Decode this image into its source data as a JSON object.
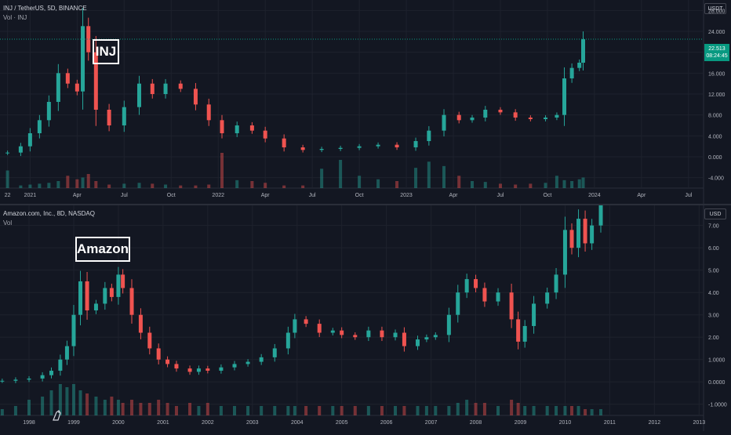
{
  "top": {
    "header": "INJ / TetherUS, 5D, BINANCE",
    "volume_label": "Vol · INJ",
    "currency": "USDT",
    "annotation": "INJ",
    "price_tag": {
      "price": "22.513",
      "countdown": "08:24:45"
    }
  },
  "bottom": {
    "header": "Amazon.com, Inc., 8D, NASDAQ",
    "volume_label": "Vol",
    "currency": "USD",
    "annotation": "Amazon"
  },
  "colors": {
    "up": "#26a69a",
    "down": "#ef5350",
    "background": "#131722",
    "grid": "#1e222d",
    "text": "#b2b5be"
  },
  "chart_data": [
    {
      "type": "candlestick",
      "title": "INJ / TetherUS, 5D, BINANCE",
      "y_ticks": [
        "28.000",
        "24.000",
        "20.000",
        "16.000",
        "12.000",
        "8.000",
        "4.000",
        "0.000",
        "-4.000"
      ],
      "y_tick_values": [
        28,
        24,
        20,
        16,
        12,
        8,
        4,
        0,
        -4
      ],
      "ylim": [
        -6,
        30
      ],
      "x_ticks": [
        "22",
        "2021",
        "Apr",
        "Jul",
        "Oct",
        "2022",
        "Apr",
        "Jul",
        "Oct",
        "2023",
        "Apr",
        "Jul",
        "Oct",
        "2024",
        "Apr",
        "Jul"
      ],
      "x_tick_values": [
        2020.88,
        2021.0,
        2021.25,
        2021.5,
        2021.75,
        2022.0,
        2022.25,
        2022.5,
        2022.75,
        2023.0,
        2023.25,
        2023.5,
        2023.75,
        2024.0,
        2024.25,
        2024.5
      ],
      "xlim": [
        2020.84,
        2024.58
      ],
      "series": [
        {
          "x": [
            2020.88,
            2020.95,
            2021.0,
            2021.05,
            2021.1,
            2021.15,
            2021.2,
            2021.25,
            2021.28,
            2021.31,
            2021.35,
            2021.42,
            2021.5,
            2021.58,
            2021.65,
            2021.72,
            2021.8,
            2021.88,
            2021.95,
            2022.02,
            2022.1,
            2022.18,
            2022.25,
            2022.35,
            2022.45,
            2022.55,
            2022.65,
            2022.75,
            2022.85,
            2022.95,
            2023.05,
            2023.12,
            2023.2,
            2023.28,
            2023.35,
            2023.42,
            2023.5,
            2023.58,
            2023.66,
            2023.74,
            2023.8,
            2023.84,
            2023.88,
            2023.92,
            2023.94
          ],
          "y": [
            0.8,
            2.0,
            4.5,
            7.0,
            10.5,
            16.0,
            14.0,
            12.5,
            25.0,
            20.0,
            9.0,
            6.0,
            9.5,
            14.0,
            12.0,
            14.0,
            13.0,
            10.0,
            7.0,
            4.5,
            6.0,
            5.0,
            3.5,
            1.8,
            1.3,
            1.5,
            1.7,
            2.0,
            2.3,
            1.8,
            3.0,
            5.0,
            8.0,
            7.0,
            7.5,
            9.0,
            8.5,
            7.5,
            7.2,
            7.5,
            8.0,
            15.0,
            17.0,
            18.0,
            22.5
          ]
        }
      ],
      "volume": [
        2,
        0.3,
        0.4,
        0.5,
        0.6,
        0.8,
        1.4,
        1.0,
        1.2,
        1.6,
        0.8,
        0.4,
        0.5,
        0.6,
        0.5,
        0.4,
        0.3,
        0.3,
        0.4,
        4.0,
        0.9,
        0.8,
        0.6,
        0.3,
        0.3,
        2.2,
        3.2,
        1.4,
        1.0,
        0.8,
        2.3,
        3.0,
        2.5,
        1.4,
        0.8,
        0.7,
        0.5,
        0.4,
        0.5,
        0.6,
        1.4,
        0.9,
        0.8,
        1.0,
        1.2
      ]
    },
    {
      "type": "candlestick",
      "title": "Amazon.com, Inc., 8D, NASDAQ",
      "y_ticks": [
        "7.00",
        "6.00",
        "5.00",
        "4.00",
        "3.00",
        "2.00",
        "1.0000",
        "0.0000",
        "-1.0000"
      ],
      "y_tick_values": [
        7,
        6,
        5,
        4,
        3,
        2,
        1,
        0,
        -1
      ],
      "ylim": [
        -1.5,
        7.9
      ],
      "x_ticks": [
        "1998",
        "1999",
        "2000",
        "2001",
        "2002",
        "2003",
        "2004",
        "2005",
        "2006",
        "2007",
        "2008",
        "2009",
        "2010",
        "2011",
        "2012",
        "2013"
      ],
      "x_tick_values": [
        1998,
        1999,
        2000,
        2001,
        2002,
        2003,
        2004,
        2005,
        2006,
        2007,
        2008,
        2009,
        2010,
        2011,
        2012,
        2013
      ],
      "xlim": [
        1997.35,
        2013.1
      ],
      "series": [
        {
          "x": [
            1997.4,
            1997.7,
            1998.0,
            1998.3,
            1998.5,
            1998.7,
            1998.85,
            1999.0,
            1999.15,
            1999.3,
            1999.5,
            1999.7,
            1999.85,
            2000.0,
            2000.1,
            2000.3,
            2000.5,
            2000.7,
            2000.9,
            2001.1,
            2001.3,
            2001.6,
            2001.8,
            2002.0,
            2002.3,
            2002.6,
            2002.9,
            2003.2,
            2003.5,
            2003.8,
            2003.95,
            2004.2,
            2004.5,
            2004.8,
            2005.0,
            2005.3,
            2005.6,
            2005.9,
            2006.2,
            2006.4,
            2006.7,
            2006.9,
            2007.1,
            2007.4,
            2007.6,
            2007.8,
            2008.0,
            2008.2,
            2008.5,
            2008.8,
            2008.95,
            2009.1,
            2009.3,
            2009.6,
            2009.8,
            2010.0,
            2010.15,
            2010.3,
            2010.45,
            2010.6,
            2010.8
          ],
          "y": [
            0.05,
            0.1,
            0.15,
            0.3,
            0.5,
            1.0,
            1.6,
            3.0,
            4.5,
            3.2,
            3.5,
            4.2,
            3.8,
            4.8,
            4.2,
            3.0,
            2.2,
            1.5,
            1.0,
            0.8,
            0.6,
            0.45,
            0.6,
            0.5,
            0.65,
            0.8,
            0.9,
            1.1,
            1.5,
            2.2,
            2.8,
            2.6,
            2.2,
            2.3,
            2.1,
            2.0,
            2.3,
            2.0,
            2.2,
            1.6,
            1.9,
            2.0,
            2.1,
            3.0,
            4.0,
            4.6,
            4.2,
            3.6,
            4.0,
            2.8,
            1.8,
            2.5,
            3.5,
            4.0,
            4.8,
            6.8,
            6.0,
            7.3,
            6.2,
            7.0,
            7.9
          ]
        }
      ],
      "volume": [
        0.2,
        0.3,
        0.5,
        0.6,
        0.8,
        1.0,
        0.9,
        1.0,
        0.8,
        0.7,
        0.6,
        0.5,
        0.6,
        0.5,
        0.4,
        0.5,
        0.4,
        0.4,
        0.5,
        0.4,
        0.3,
        0.4,
        0.3,
        0.4,
        0.3,
        0.3,
        0.3,
        0.3,
        0.3,
        0.3,
        0.3,
        0.3,
        0.3,
        0.3,
        0.3,
        0.3,
        0.3,
        0.3,
        0.3,
        0.3,
        0.3,
        0.3,
        0.3,
        0.3,
        0.4,
        0.5,
        0.4,
        0.4,
        0.3,
        0.5,
        0.4,
        0.3,
        0.3,
        0.3,
        0.3,
        0.3,
        0.3,
        0.3,
        0.2,
        0.2,
        0.2
      ]
    }
  ]
}
